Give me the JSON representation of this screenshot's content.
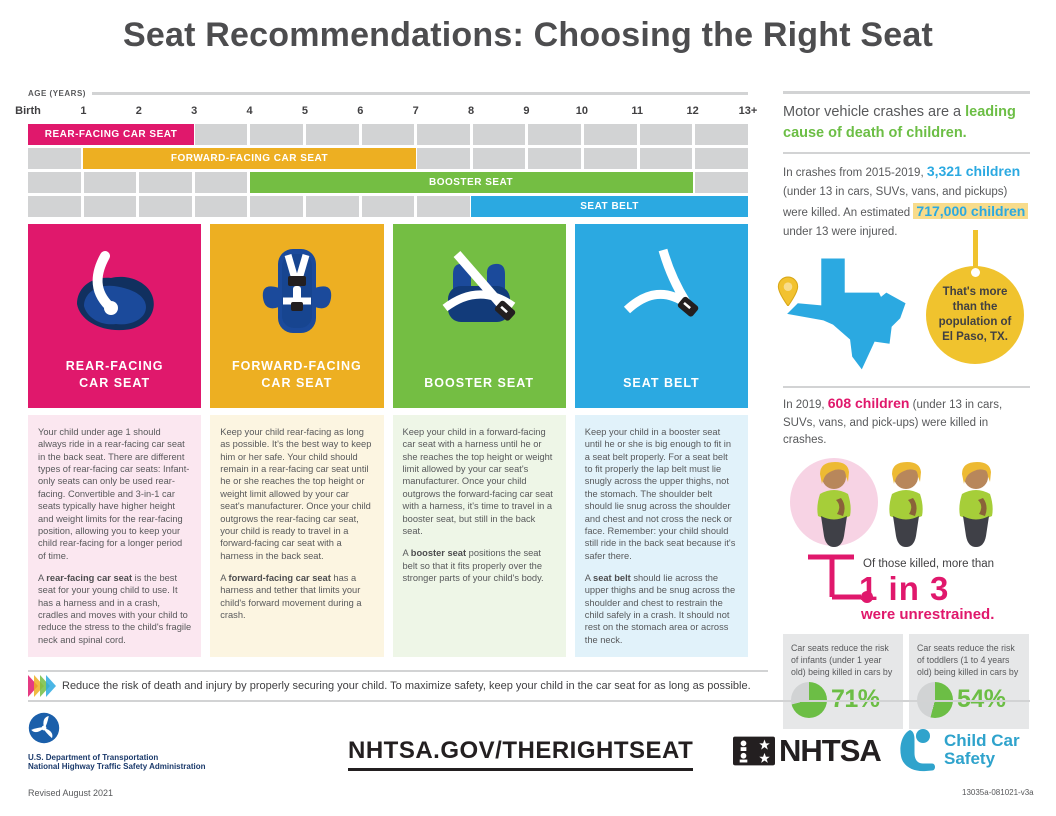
{
  "title": "Seat Recommendations: Choosing the Right Seat",
  "colors": {
    "pink": "#E0186C",
    "yellow": "#EDAF22",
    "green": "#74BE43",
    "blue": "#2BA9E1",
    "green_text": "#6CBE45",
    "blue_text": "#2BA9E1",
    "pie_gray": "#D1D3D4",
    "cell_gray": "#D2D3D4",
    "highlight_yellow": "#F8DC8B"
  },
  "timeline": {
    "axis_label": "AGE (YEARS)",
    "num_cols": 13,
    "tick_labels": [
      "Birth",
      "1",
      "2",
      "3",
      "4",
      "5",
      "6",
      "7",
      "8",
      "9",
      "10",
      "11",
      "12",
      "13+"
    ],
    "cell_color": "#D2D3D4",
    "rows": [
      {
        "label": "REAR-FACING CAR SEAT",
        "start": 0,
        "end": 3,
        "color": "#E0186C"
      },
      {
        "label": "FORWARD-FACING CAR SEAT",
        "start": 1,
        "end": 7,
        "color": "#EDAF22"
      },
      {
        "label": "BOOSTER SEAT",
        "start": 4,
        "end": 12,
        "color": "#74BE43"
      },
      {
        "label": "SEAT BELT",
        "start": 8,
        "end": 13,
        "color": "#2BA9E1"
      }
    ]
  },
  "columns": [
    {
      "title": "REAR-FACING\nCAR SEAT",
      "color": "#E0186C",
      "text_bg": "#FBE7F0",
      "p1": "Your child under age 1 should always ride in a rear-facing car seat in the back seat. There are different types of rear-facing car seats: Infant-only seats can only be used rear-facing. Convertible and 3-in-1 car seats typically have higher height and weight limits for the rear-facing position, allowing you to keep your child rear-facing for a longer period of time.",
      "p2_prefix": "A ",
      "p2_bold": "rear-facing car seat",
      "p2_rest": " is the best seat for your young child to use. It has a harness and in a crash, cradles and moves with your child to reduce the stress to the child's fragile neck and spinal cord."
    },
    {
      "title": "FORWARD-FACING\nCAR SEAT",
      "color": "#EDAF22",
      "text_bg": "#FCF5E1",
      "p1": "Keep your child rear-facing as long as possible. It's the best way to keep him or her safe. Your child should remain in a rear-facing car seat until he or she reaches the top height or weight limit allowed by your car seat's manufacturer. Once your child outgrows the rear-facing car seat, your child is ready to travel in a forward-facing car seat with a harness in the back seat.",
      "p2_prefix": "A ",
      "p2_bold": "forward-facing car seat",
      "p2_rest": " has a harness and tether that limits your child's forward movement during a crash."
    },
    {
      "title": "BOOSTER SEAT",
      "color": "#74BE43",
      "text_bg": "#EEF6E7",
      "p1": "Keep your child in a forward-facing car seat with a harness until he or she reaches the top height or weight limit allowed by your car seat's manufacturer. Once your child outgrows the forward-facing car seat with a harness, it's time to travel in a booster seat, but still in the back seat.",
      "p2_prefix": "A ",
      "p2_bold": "booster seat",
      "p2_rest": " positions the seat belt so that it fits properly over the stronger parts of your child's body."
    },
    {
      "title": "SEAT BELT",
      "color": "#2BA9E1",
      "text_bg": "#E1F2FA",
      "p1": "Keep your child in a booster seat until he or she is big enough to fit in a seat belt properly. For a seat belt to fit properly the lap belt must lie snugly across the upper thighs, not the stomach. The shoulder belt should lie snug across the shoulder and chest and not cross the neck or face. Remember: your child should still ride in the back seat because it's safer there.",
      "p2_prefix": "A ",
      "p2_bold": "seat belt",
      "p2_rest": " should lie across the upper thighs and be snug across the shoulder and chest to restrain the child safely in a crash. It should not rest on the stomach area or across the neck."
    }
  ],
  "sidebar": {
    "headline_prefix": "Motor vehicle crashes are a ",
    "headline_highlight": "leading cause of death of children.",
    "stat1": {
      "prefix": "In crashes from 2015-2019, ",
      "number1": "3,321 children",
      "mid": " (under 13 in cars, SUVs, vans, and pickups) were killed. An estimated ",
      "number2": "717,000 children",
      "suffix": " under 13 were injured."
    },
    "circle_text": "That's more than the population of El Paso, TX.",
    "stat2": {
      "prefix": "In 2019, ",
      "number": "608 children",
      "suffix": " (under 13 in cars, SUVs, vans, and pick-ups) were killed in crashes."
    },
    "unrestrained_label": "Of those killed, more than",
    "unrestrained_big": "1 in 3",
    "unrestrained_sub": "were unrestrained.",
    "stat_boxes": [
      {
        "text": "Car seats reduce the risk of infants (under 1 year old) being killed in cars by",
        "pct": "71%",
        "pct_value": 71
      },
      {
        "text": "Car seats reduce the risk of toddlers (1 to 4 years old) being killed in cars by",
        "pct": "54%",
        "pct_value": 54
      }
    ]
  },
  "banner_text": "Reduce the risk of death and injury by properly securing your child. To maximize safety, keep your child in the car seat for as long as possible.",
  "footer": {
    "dept_line1": "U.S. Department of Transportation",
    "dept_line2": "National Highway Traffic Safety Administration",
    "url": "NHTSA.GOV/THERIGHTSEAT",
    "nhtsa_logo_text": "NHTSA",
    "ccs_logo_text": "Child Car\nSafety",
    "revised": "Revised August 2021",
    "doc_number": "13035a-081021-v3a"
  }
}
